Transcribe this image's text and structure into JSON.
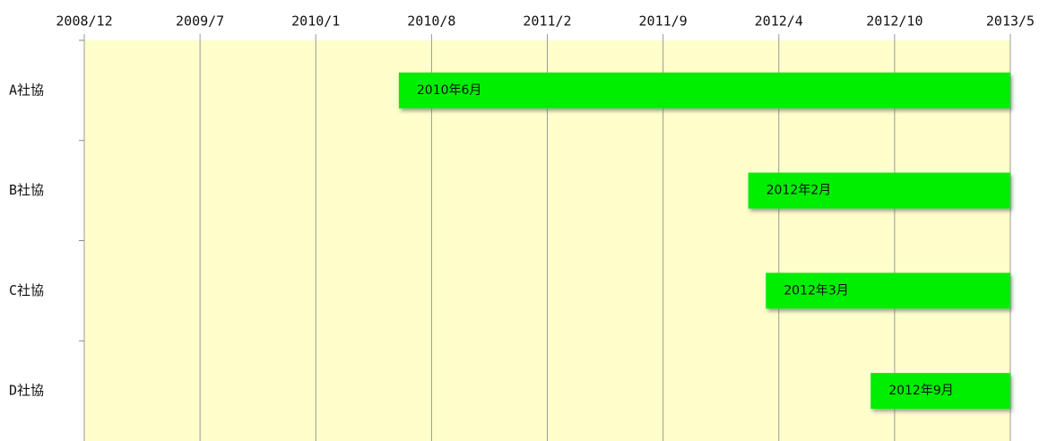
{
  "chart_data": {
    "type": "gantt",
    "categories": [
      "A社協",
      "B社協",
      "C社協",
      "D社協"
    ],
    "start": [
      2010.417,
      2012.083,
      2012.167,
      2012.667
    ],
    "end": [
      2013.333,
      2013.333,
      2013.333,
      2013.333
    ],
    "value_labels": [
      "2010年6月",
      "2012年2月",
      "2012年3月",
      "2012年9月"
    ],
    "color": "#00ee00",
    "xlim": [
      2008.917,
      2013.333
    ],
    "xticks": [
      {
        "value": 2008.917,
        "label": "2008/12"
      },
      {
        "value": 2009.469,
        "label": "2009/7"
      },
      {
        "value": 2010.021,
        "label": "2010/1"
      },
      {
        "value": 2010.573,
        "label": "2010/8"
      },
      {
        "value": 2011.125,
        "label": "2011/2"
      },
      {
        "value": 2011.677,
        "label": "2011/9"
      },
      {
        "value": 2012.229,
        "label": "2012/4"
      },
      {
        "value": 2012.781,
        "label": "2012/10"
      },
      {
        "value": 2013.333,
        "label": "2013/5"
      }
    ],
    "grid": true
  }
}
